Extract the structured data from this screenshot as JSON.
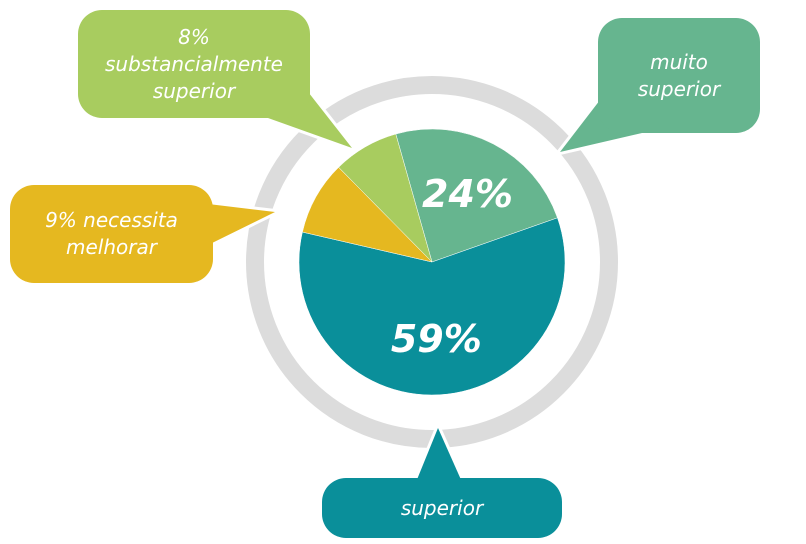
{
  "chart_data": {
    "type": "pie",
    "categories": [
      "muito superior",
      "superior",
      "necessita melhorar",
      "substancialmente superior"
    ],
    "values": [
      24,
      59,
      9,
      8
    ],
    "value_labels": [
      "24%",
      "59%",
      "9%",
      "8%"
    ],
    "colors": [
      "#66b58f",
      "#0a8f9a",
      "#e5b820",
      "#a8cc5f"
    ]
  }
}
